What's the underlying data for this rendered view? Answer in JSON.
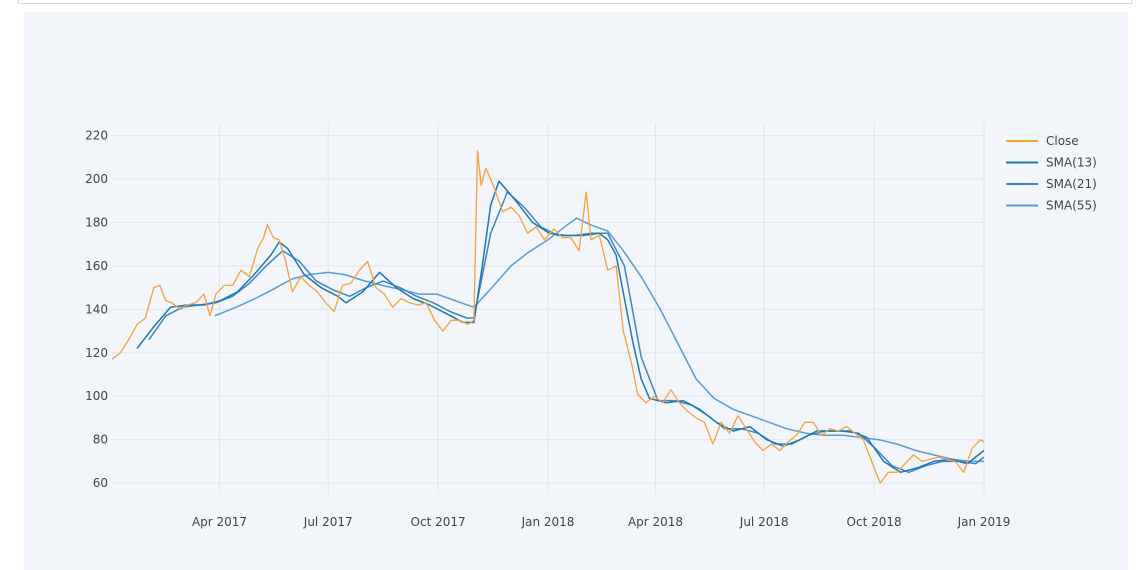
{
  "chart_data": {
    "type": "line",
    "title": "",
    "xlabel": "",
    "ylabel": "",
    "xlim": [
      "2017-01-01",
      "2019-01-01"
    ],
    "ylim": [
      55,
      223
    ],
    "y_ticks": [
      60,
      80,
      100,
      120,
      140,
      160,
      180,
      200,
      220
    ],
    "x_ticks": [
      {
        "date": "2017-04-01",
        "label": "Apr 2017"
      },
      {
        "date": "2017-07-01",
        "label": "Jul 2017"
      },
      {
        "date": "2017-10-01",
        "label": "Oct 2017"
      },
      {
        "date": "2018-01-01",
        "label": "Jan 2018"
      },
      {
        "date": "2018-04-01",
        "label": "Apr 2018"
      },
      {
        "date": "2018-07-01",
        "label": "Jul 2018"
      },
      {
        "date": "2018-10-01",
        "label": "Oct 2018"
      },
      {
        "date": "2019-01-01",
        "label": "Jan 2019"
      }
    ],
    "grid": true,
    "legend_position": "top-right",
    "series": [
      {
        "name": "Close",
        "color": "#f7a23b",
        "points": [
          [
            "2017-01-01",
            117
          ],
          [
            "2017-01-08",
            120
          ],
          [
            "2017-01-15",
            126
          ],
          [
            "2017-01-22",
            133
          ],
          [
            "2017-01-29",
            136
          ],
          [
            "2017-02-05",
            150
          ],
          [
            "2017-02-10",
            151
          ],
          [
            "2017-02-15",
            144
          ],
          [
            "2017-02-20",
            143
          ],
          [
            "2017-02-27",
            140
          ],
          [
            "2017-03-05",
            142
          ],
          [
            "2017-03-12",
            143
          ],
          [
            "2017-03-19",
            147
          ],
          [
            "2017-03-24",
            137
          ],
          [
            "2017-03-29",
            147
          ],
          [
            "2017-04-05",
            151
          ],
          [
            "2017-04-12",
            151
          ],
          [
            "2017-04-19",
            158
          ],
          [
            "2017-04-26",
            155
          ],
          [
            "2017-05-03",
            168
          ],
          [
            "2017-05-08",
            173
          ],
          [
            "2017-05-11",
            179
          ],
          [
            "2017-05-16",
            173
          ],
          [
            "2017-05-21",
            172
          ],
          [
            "2017-05-26",
            163
          ],
          [
            "2017-06-01",
            148
          ],
          [
            "2017-06-08",
            155
          ],
          [
            "2017-06-15",
            151
          ],
          [
            "2017-06-22",
            148
          ],
          [
            "2017-06-29",
            143
          ],
          [
            "2017-07-06",
            139
          ],
          [
            "2017-07-13",
            151
          ],
          [
            "2017-07-20",
            152
          ],
          [
            "2017-07-27",
            158
          ],
          [
            "2017-08-03",
            162
          ],
          [
            "2017-08-10",
            150
          ],
          [
            "2017-08-17",
            147
          ],
          [
            "2017-08-24",
            141
          ],
          [
            "2017-08-31",
            145
          ],
          [
            "2017-09-07",
            143
          ],
          [
            "2017-09-14",
            142
          ],
          [
            "2017-09-21",
            143
          ],
          [
            "2017-09-28",
            135
          ],
          [
            "2017-10-05",
            130
          ],
          [
            "2017-10-12",
            135
          ],
          [
            "2017-10-19",
            135
          ],
          [
            "2017-10-26",
            133
          ],
          [
            "2017-10-31",
            135
          ],
          [
            "2017-11-03",
            213
          ],
          [
            "2017-11-06",
            197
          ],
          [
            "2017-11-10",
            205
          ],
          [
            "2017-11-17",
            196
          ],
          [
            "2017-11-24",
            185
          ],
          [
            "2017-12-01",
            187
          ],
          [
            "2017-12-08",
            183
          ],
          [
            "2017-12-15",
            175
          ],
          [
            "2017-12-22",
            178
          ],
          [
            "2017-12-29",
            172
          ],
          [
            "2018-01-06",
            177
          ],
          [
            "2018-01-13",
            173
          ],
          [
            "2018-01-20",
            173
          ],
          [
            "2018-01-27",
            167
          ],
          [
            "2018-02-02",
            194
          ],
          [
            "2018-02-06",
            172
          ],
          [
            "2018-02-13",
            174
          ],
          [
            "2018-02-20",
            158
          ],
          [
            "2018-02-27",
            160
          ],
          [
            "2018-03-05",
            130
          ],
          [
            "2018-03-12",
            115
          ],
          [
            "2018-03-17",
            101
          ],
          [
            "2018-03-24",
            97
          ],
          [
            "2018-03-31",
            100
          ],
          [
            "2018-04-07",
            97
          ],
          [
            "2018-04-14",
            103
          ],
          [
            "2018-04-21",
            97
          ],
          [
            "2018-04-28",
            93
          ],
          [
            "2018-05-05",
            90
          ],
          [
            "2018-05-12",
            88
          ],
          [
            "2018-05-19",
            78
          ],
          [
            "2018-05-26",
            88
          ],
          [
            "2018-06-02",
            83
          ],
          [
            "2018-06-09",
            91
          ],
          [
            "2018-06-16",
            85
          ],
          [
            "2018-06-23",
            79
          ],
          [
            "2018-06-30",
            75
          ],
          [
            "2018-07-07",
            78
          ],
          [
            "2018-07-14",
            75
          ],
          [
            "2018-07-21",
            79
          ],
          [
            "2018-07-28",
            82
          ],
          [
            "2018-08-04",
            88
          ],
          [
            "2018-08-11",
            88
          ],
          [
            "2018-08-18",
            82
          ],
          [
            "2018-08-25",
            85
          ],
          [
            "2018-09-01",
            84
          ],
          [
            "2018-09-08",
            86
          ],
          [
            "2018-09-15",
            83
          ],
          [
            "2018-09-22",
            80
          ],
          [
            "2018-09-29",
            70
          ],
          [
            "2018-10-06",
            60
          ],
          [
            "2018-10-13",
            65
          ],
          [
            "2018-10-20",
            65
          ],
          [
            "2018-10-27",
            69
          ],
          [
            "2018-11-03",
            73
          ],
          [
            "2018-11-10",
            70
          ],
          [
            "2018-11-17",
            71
          ],
          [
            "2018-11-24",
            72
          ],
          [
            "2018-12-01",
            71
          ],
          [
            "2018-12-08",
            70
          ],
          [
            "2018-12-15",
            65
          ],
          [
            "2018-12-22",
            76
          ],
          [
            "2018-12-29",
            80
          ],
          [
            "2019-01-01",
            79
          ]
        ]
      },
      {
        "name": "SMA(13)",
        "color": "#1f77b4",
        "points": [
          [
            "2017-01-22",
            122
          ],
          [
            "2017-02-05",
            132
          ],
          [
            "2017-02-19",
            141
          ],
          [
            "2017-03-05",
            142
          ],
          [
            "2017-03-19",
            142
          ],
          [
            "2017-04-02",
            144
          ],
          [
            "2017-04-16",
            148
          ],
          [
            "2017-04-30",
            156
          ],
          [
            "2017-05-14",
            165
          ],
          [
            "2017-05-21",
            171
          ],
          [
            "2017-05-28",
            168
          ],
          [
            "2017-06-11",
            156
          ],
          [
            "2017-06-25",
            150
          ],
          [
            "2017-07-09",
            146
          ],
          [
            "2017-07-16",
            143
          ],
          [
            "2017-07-30",
            148
          ],
          [
            "2017-08-13",
            157
          ],
          [
            "2017-08-27",
            150
          ],
          [
            "2017-09-10",
            145
          ],
          [
            "2017-09-24",
            142
          ],
          [
            "2017-10-08",
            138
          ],
          [
            "2017-10-22",
            134
          ],
          [
            "2017-10-31",
            134
          ],
          [
            "2017-11-07",
            160
          ],
          [
            "2017-11-14",
            188
          ],
          [
            "2017-11-21",
            199
          ],
          [
            "2017-12-05",
            190
          ],
          [
            "2017-12-19",
            180
          ],
          [
            "2018-01-02",
            175
          ],
          [
            "2018-01-16",
            174
          ],
          [
            "2018-01-30",
            174
          ],
          [
            "2018-02-13",
            175
          ],
          [
            "2018-02-20",
            172
          ],
          [
            "2018-02-27",
            165
          ],
          [
            "2018-03-06",
            145
          ],
          [
            "2018-03-13",
            125
          ],
          [
            "2018-03-20",
            108
          ],
          [
            "2018-03-27",
            99
          ],
          [
            "2018-04-10",
            97
          ],
          [
            "2018-04-24",
            98
          ],
          [
            "2018-05-08",
            94
          ],
          [
            "2018-05-22",
            88
          ],
          [
            "2018-06-05",
            84
          ],
          [
            "2018-06-19",
            86
          ],
          [
            "2018-07-03",
            80
          ],
          [
            "2018-07-17",
            77
          ],
          [
            "2018-07-31",
            80
          ],
          [
            "2018-08-14",
            84
          ],
          [
            "2018-08-28",
            84
          ],
          [
            "2018-09-11",
            84
          ],
          [
            "2018-09-25",
            81
          ],
          [
            "2018-10-09",
            70
          ],
          [
            "2018-10-23",
            65
          ],
          [
            "2018-11-06",
            67
          ],
          [
            "2018-11-20",
            70
          ],
          [
            "2018-12-04",
            71
          ],
          [
            "2018-12-18",
            69
          ],
          [
            "2019-01-01",
            75
          ]
        ]
      },
      {
        "name": "SMA(21)",
        "color": "#3d85c6",
        "points": [
          [
            "2017-02-01",
            126
          ],
          [
            "2017-02-15",
            137
          ],
          [
            "2017-03-01",
            141
          ],
          [
            "2017-03-15",
            142
          ],
          [
            "2017-03-29",
            143
          ],
          [
            "2017-04-12",
            146
          ],
          [
            "2017-04-26",
            152
          ],
          [
            "2017-05-10",
            160
          ],
          [
            "2017-05-24",
            167
          ],
          [
            "2017-06-07",
            162
          ],
          [
            "2017-06-21",
            153
          ],
          [
            "2017-07-05",
            149
          ],
          [
            "2017-07-19",
            146
          ],
          [
            "2017-08-02",
            150
          ],
          [
            "2017-08-16",
            153
          ],
          [
            "2017-08-30",
            150
          ],
          [
            "2017-09-13",
            146
          ],
          [
            "2017-09-27",
            143
          ],
          [
            "2017-10-11",
            139
          ],
          [
            "2017-10-25",
            136
          ],
          [
            "2017-10-31",
            136
          ],
          [
            "2017-11-14",
            175
          ],
          [
            "2017-11-28",
            194
          ],
          [
            "2017-12-12",
            187
          ],
          [
            "2017-12-26",
            178
          ],
          [
            "2018-01-09",
            174
          ],
          [
            "2018-01-23",
            174
          ],
          [
            "2018-02-06",
            175
          ],
          [
            "2018-02-20",
            175
          ],
          [
            "2018-03-06",
            160
          ],
          [
            "2018-03-20",
            118
          ],
          [
            "2018-04-03",
            98
          ],
          [
            "2018-04-17",
            98
          ],
          [
            "2018-05-01",
            96
          ],
          [
            "2018-05-15",
            91
          ],
          [
            "2018-05-29",
            85
          ],
          [
            "2018-06-12",
            85
          ],
          [
            "2018-06-26",
            83
          ],
          [
            "2018-07-10",
            78
          ],
          [
            "2018-07-24",
            78
          ],
          [
            "2018-08-07",
            82
          ],
          [
            "2018-08-21",
            84
          ],
          [
            "2018-09-04",
            84
          ],
          [
            "2018-09-18",
            83
          ],
          [
            "2018-10-02",
            76
          ],
          [
            "2018-10-16",
            68
          ],
          [
            "2018-10-30",
            65
          ],
          [
            "2018-11-13",
            68
          ],
          [
            "2018-11-27",
            70
          ],
          [
            "2018-12-11",
            70
          ],
          [
            "2018-12-25",
            69
          ],
          [
            "2019-01-01",
            72
          ]
        ]
      },
      {
        "name": "SMA(55)",
        "color": "#5b9bd5",
        "points": [
          [
            "2017-03-28",
            137
          ],
          [
            "2017-04-15",
            141
          ],
          [
            "2017-05-01",
            145
          ],
          [
            "2017-05-15",
            149
          ],
          [
            "2017-06-01",
            154
          ],
          [
            "2017-06-15",
            156
          ],
          [
            "2017-07-01",
            157
          ],
          [
            "2017-07-15",
            156
          ],
          [
            "2017-08-01",
            153
          ],
          [
            "2017-08-15",
            151
          ],
          [
            "2017-09-01",
            149
          ],
          [
            "2017-09-15",
            147
          ],
          [
            "2017-09-30",
            147
          ],
          [
            "2017-10-15",
            144
          ],
          [
            "2017-10-31",
            141
          ],
          [
            "2017-11-15",
            150
          ],
          [
            "2017-12-01",
            160
          ],
          [
            "2017-12-15",
            166
          ],
          [
            "2018-01-01",
            172
          ],
          [
            "2018-01-15",
            178
          ],
          [
            "2018-01-25",
            182
          ],
          [
            "2018-02-05",
            179
          ],
          [
            "2018-02-20",
            176
          ],
          [
            "2018-03-05",
            167
          ],
          [
            "2018-03-20",
            155
          ],
          [
            "2018-04-05",
            140
          ],
          [
            "2018-04-20",
            124
          ],
          [
            "2018-05-05",
            108
          ],
          [
            "2018-05-20",
            99
          ],
          [
            "2018-06-05",
            94
          ],
          [
            "2018-06-20",
            91
          ],
          [
            "2018-07-05",
            88
          ],
          [
            "2018-07-20",
            85
          ],
          [
            "2018-08-05",
            83
          ],
          [
            "2018-08-20",
            82
          ],
          [
            "2018-09-05",
            82
          ],
          [
            "2018-09-20",
            81
          ],
          [
            "2018-10-05",
            80
          ],
          [
            "2018-10-20",
            78
          ],
          [
            "2018-11-05",
            75
          ],
          [
            "2018-11-20",
            73
          ],
          [
            "2018-12-05",
            71
          ],
          [
            "2018-12-20",
            70
          ],
          [
            "2019-01-01",
            70
          ]
        ]
      }
    ]
  }
}
